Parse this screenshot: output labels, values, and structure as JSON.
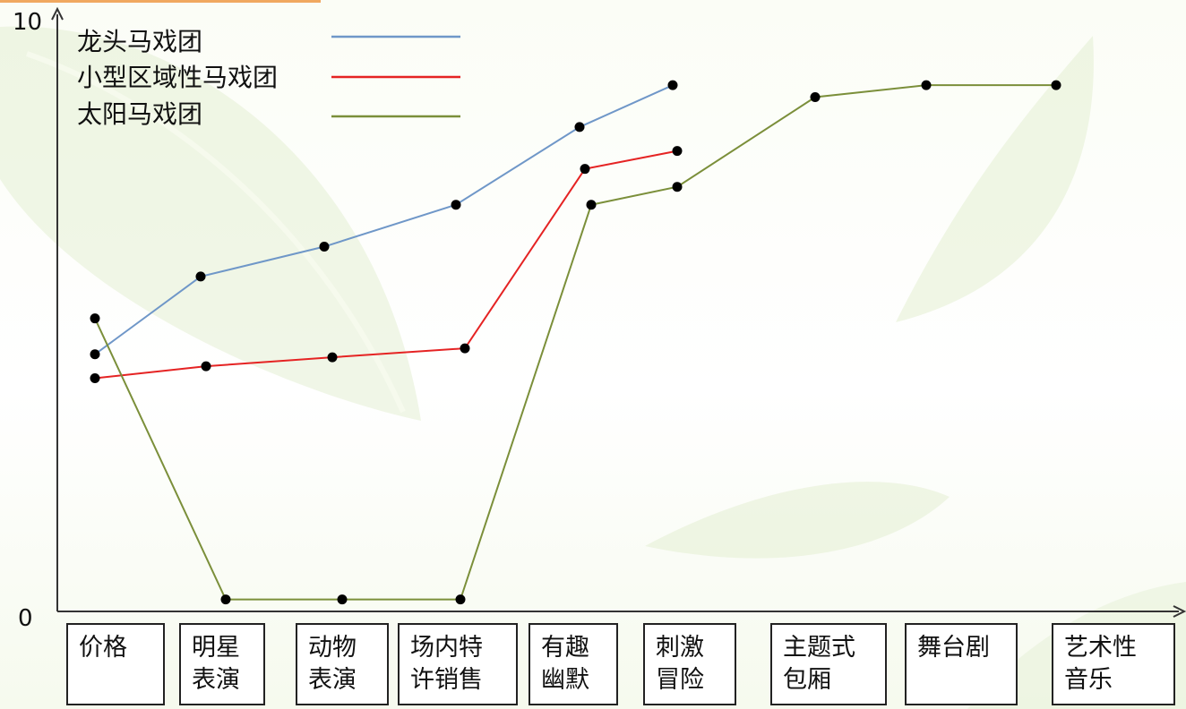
{
  "chart_data": {
    "type": "line",
    "categories": [
      "价格",
      "明星\n表演",
      "动物\n表演",
      "场内特\n许销售",
      "有趣\n幽默",
      "刺激\n冒险",
      "主题式\n包厢",
      "舞台剧",
      "艺术性\n音乐"
    ],
    "ylim": [
      0,
      10
    ],
    "yticks": [
      "0",
      "10"
    ],
    "grid": false,
    "legend_position": "top-left",
    "series": [
      {
        "name": "龙头马戏团",
        "color": "#6f97c8",
        "points": [
          [
            0,
            4.3
          ],
          [
            1,
            5.6
          ],
          [
            2,
            6.1
          ],
          [
            3,
            6.8
          ],
          [
            4,
            8.1
          ],
          [
            5,
            8.8
          ]
        ]
      },
      {
        "name": "小型区域性马戏团",
        "color": "#e52323",
        "points": [
          [
            0,
            3.9
          ],
          [
            1,
            4.1
          ],
          [
            2,
            4.25
          ],
          [
            3,
            4.4
          ],
          [
            4,
            7.4
          ],
          [
            5,
            7.7
          ]
        ]
      },
      {
        "name": "太阳马戏团",
        "color": "#7b8f3a",
        "points": [
          [
            0,
            4.9
          ],
          [
            1,
            0.2
          ],
          [
            2,
            0.2
          ],
          [
            3,
            0.2
          ],
          [
            4,
            6.8
          ],
          [
            5,
            7.1
          ],
          [
            6,
            8.6
          ],
          [
            7,
            8.8
          ],
          [
            8,
            8.8
          ]
        ]
      }
    ]
  }
}
